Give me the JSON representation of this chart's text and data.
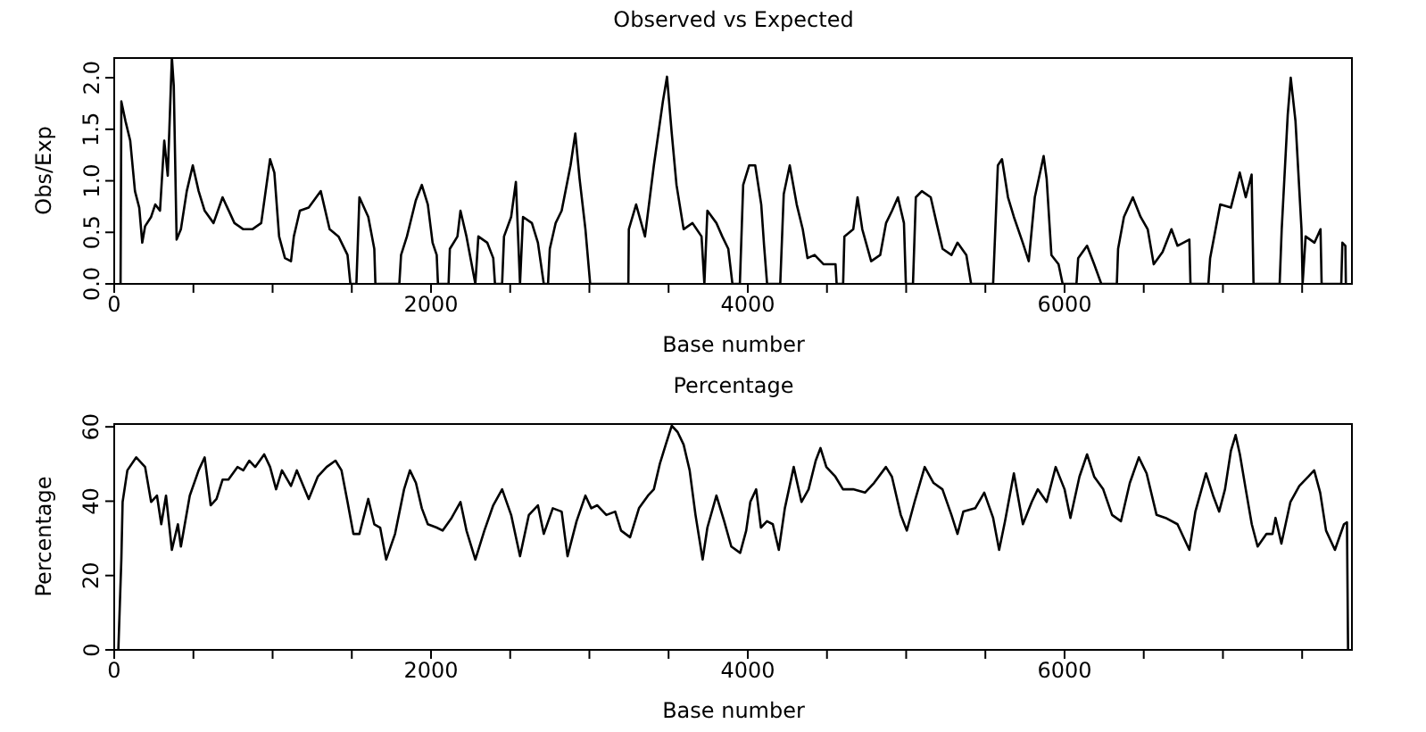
{
  "chart_data": [
    {
      "type": "line",
      "title": "Observed vs Expected",
      "xlabel": "Base number",
      "ylabel": "Obs/Exp",
      "xlim": [
        0,
        7820
      ],
      "ylim": [
        0,
        2.2
      ],
      "xticks": [
        0,
        {
          "value": 500,
          "label": null
        },
        {
          "value": 1000,
          "label": null
        },
        {
          "value": 1500,
          "label": null
        },
        2000,
        {
          "value": 2500,
          "label": null
        },
        {
          "value": 3000,
          "label": null
        },
        {
          "value": 3500,
          "label": null
        },
        4000,
        {
          "value": 4500,
          "label": null
        },
        {
          "value": 5000,
          "label": null
        },
        {
          "value": 5500,
          "label": null
        },
        6000,
        {
          "value": 6500,
          "label": null
        },
        {
          "value": 7000,
          "label": null
        },
        {
          "value": 7500,
          "label": null
        }
      ],
      "yticks": [
        {
          "value": 0,
          "label": "0.0"
        },
        0.5,
        {
          "value": 1,
          "label": "1.0"
        },
        1.5,
        {
          "value": 2,
          "label": "2.0"
        }
      ],
      "series": [
        {
          "color": "#000000",
          "x": [
            40,
            45,
            71,
            101,
            131,
            158,
            177,
            195,
            233,
            259,
            289,
            316,
            338,
            364,
            376,
            394,
            421,
            458,
            496,
            533,
            571,
            627,
            684,
            759,
            815,
            872,
            928,
            984,
            1011,
            1041,
            1078,
            1116,
            1134,
            1172,
            1228,
            1304,
            1360,
            1416,
            1473,
            1491,
            1529,
            1548,
            1604,
            1642,
            1649,
            1800,
            1811,
            1848,
            1904,
            1942,
            1980,
            2010,
            2036,
            2044,
            2111,
            2119,
            2167,
            2186,
            2224,
            2280,
            2299,
            2355,
            2393,
            2404,
            2449,
            2461,
            2506,
            2536,
            2562,
            2581,
            2637,
            2675,
            2712,
            2739,
            2750,
            2787,
            2825,
            2881,
            2911,
            2938,
            2975,
            3005,
            3246,
            3249,
            3295,
            3351,
            3407,
            3464,
            3490,
            3520,
            3550,
            3595,
            3651,
            3708,
            3726,
            3745,
            3802,
            3839,
            3877,
            3903,
            3950,
            3971,
            4009,
            4047,
            4085,
            4103,
            4122,
            4205,
            4227,
            4265,
            4309,
            4347,
            4377,
            4422,
            4479,
            4554,
            4561,
            4602,
            4610,
            4666,
            4693,
            4723,
            4779,
            4836,
            4873,
            4911,
            4948,
            4986,
            4998,
            5043,
            5061,
            5099,
            5155,
            5192,
            5230,
            5286,
            5324,
            5380,
            5410,
            5549,
            5579,
            5605,
            5643,
            5680,
            5736,
            5774,
            5812,
            5868,
            5887,
            5917,
            5962,
            5988,
            6075,
            6086,
            6142,
            6187,
            6232,
            6330,
            6338,
            6375,
            6431,
            6480,
            6525,
            6563,
            6619,
            6675,
            6713,
            6788,
            6795,
            6908,
            6919,
            6983,
            7050,
            7106,
            7144,
            7181,
            7193,
            7358,
            7371,
            7409,
            7428,
            7458,
            7496,
            7503,
            7522,
            7578,
            7616,
            7623,
            7747,
            7754,
            7773,
            7776
          ],
          "values": [
            0,
            1.77,
            1.58,
            1.39,
            0.9,
            0.74,
            0.4,
            0.56,
            0.65,
            0.77,
            0.71,
            1.39,
            1.05,
            2.2,
            1.92,
            0.43,
            0.53,
            0.9,
            1.15,
            0.9,
            0.71,
            0.59,
            0.84,
            0.59,
            0.53,
            0.53,
            0.59,
            1.21,
            1.08,
            0.46,
            0.25,
            0.22,
            0.46,
            0.71,
            0.74,
            0.9,
            0.53,
            0.46,
            0.28,
            0,
            0,
            0.84,
            0.65,
            0.34,
            0,
            0,
            0.28,
            0.46,
            0.81,
            0.96,
            0.77,
            0.4,
            0.28,
            0,
            0,
            0.34,
            0.46,
            0.71,
            0.46,
            0,
            0.46,
            0.4,
            0.25,
            0,
            0,
            0.46,
            0.65,
            0.99,
            0,
            0.65,
            0.59,
            0.4,
            0,
            0,
            0.34,
            0.59,
            0.71,
            1.15,
            1.46,
            1.02,
            0.53,
            0,
            0,
            0.53,
            0.77,
            0.46,
            1.15,
            1.77,
            2.01,
            1.46,
            0.96,
            0.53,
            0.59,
            0.46,
            0,
            0.71,
            0.59,
            0.46,
            0.34,
            0,
            0,
            0.96,
            1.15,
            1.15,
            0.77,
            0.37,
            0,
            0,
            0.87,
            1.15,
            0.77,
            0.53,
            0.25,
            0.28,
            0.19,
            0.19,
            0,
            0,
            0.46,
            0.53,
            0.84,
            0.53,
            0.22,
            0.28,
            0.59,
            0.71,
            0.84,
            0.59,
            0,
            0,
            0.84,
            0.9,
            0.84,
            0.59,
            0.34,
            0.28,
            0.4,
            0.28,
            0,
            0,
            1.15,
            1.21,
            0.84,
            0.65,
            0.4,
            0.22,
            0.84,
            1.24,
            1.02,
            0.28,
            0.19,
            0,
            0,
            0.25,
            0.37,
            0.19,
            0,
            0,
            0.34,
            0.65,
            0.84,
            0.65,
            0.53,
            0.19,
            0.31,
            0.53,
            0.37,
            0.43,
            0,
            0,
            0.25,
            0.77,
            0.74,
            1.08,
            0.84,
            1.06,
            0,
            0,
            0.53,
            1.64,
            2,
            1.58,
            0.53,
            0,
            0.46,
            0.4,
            0.53,
            0,
            0,
            0.4,
            0.37,
            0
          ]
        }
      ]
    },
    {
      "type": "line",
      "title": "Percentage",
      "xlabel": "Base number",
      "ylabel": "Percentage",
      "xlim": [
        0,
        7820
      ],
      "ylim": [
        0,
        61
      ],
      "xticks": [
        0,
        {
          "value": 500,
          "label": null
        },
        {
          "value": 1000,
          "label": null
        },
        {
          "value": 1500,
          "label": null
        },
        2000,
        {
          "value": 2500,
          "label": null
        },
        {
          "value": 3000,
          "label": null
        },
        {
          "value": 3500,
          "label": null
        },
        4000,
        {
          "value": 4500,
          "label": null
        },
        {
          "value": 5000,
          "label": null
        },
        {
          "value": 5500,
          "label": null
        },
        6000,
        {
          "value": 6500,
          "label": null
        },
        {
          "value": 7000,
          "label": null
        },
        {
          "value": 7500,
          "label": null
        }
      ],
      "yticks": [
        0,
        20,
        40,
        60
      ],
      "series": [
        {
          "color": "#000000",
          "x": [
            26,
            45,
            53,
            83,
            139,
            195,
            233,
            270,
            297,
            327,
            364,
            402,
            421,
            477,
            533,
            571,
            609,
            646,
            684,
            721,
            778,
            815,
            853,
            890,
            947,
            984,
            1022,
            1059,
            1116,
            1153,
            1228,
            1285,
            1341,
            1397,
            1435,
            1473,
            1510,
            1548,
            1604,
            1642,
            1679,
            1717,
            1773,
            1830,
            1867,
            1905,
            1942,
            1980,
            2036,
            2074,
            2130,
            2186,
            2224,
            2280,
            2337,
            2393,
            2449,
            2506,
            2562,
            2618,
            2675,
            2712,
            2769,
            2825,
            2862,
            2919,
            2975,
            3012,
            3050,
            3107,
            3163,
            3200,
            3257,
            3313,
            3370,
            3407,
            3445,
            3482,
            3520,
            3557,
            3595,
            3633,
            3670,
            3715,
            3745,
            3802,
            3851,
            3896,
            3952,
            3990,
            4016,
            4053,
            4083,
            4121,
            4158,
            4196,
            4234,
            4290,
            4339,
            4384,
            4429,
            4459,
            4496,
            4553,
            4601,
            4665,
            4740,
            4797,
            4872,
            4910,
            4966,
            5004,
            5053,
            5117,
            5173,
            5229,
            5286,
            5324,
            5361,
            5436,
            5493,
            5549,
            5587,
            5624,
            5680,
            5737,
            5793,
            5831,
            5887,
            5944,
            6000,
            6037,
            6094,
            6142,
            6187,
            6244,
            6300,
            6356,
            6412,
            6469,
            6518,
            6581,
            6638,
            6713,
            6788,
            6826,
            6893,
            6938,
            6976,
            7013,
            7050,
            7080,
            7107,
            7144,
            7182,
            7219,
            7275,
            7313,
            7332,
            7369,
            7426,
            7482,
            7539,
            7576,
            7614,
            7651,
            7707,
            7764,
            7783,
            7790
          ],
          "values": [
            0,
            24.3,
            39.8,
            48.3,
            51.8,
            49.2,
            39.8,
            41.5,
            33.8,
            41.5,
            26.9,
            33.8,
            27.8,
            41.5,
            48.3,
            51.8,
            38.9,
            40.6,
            45.8,
            45.8,
            49.2,
            48.3,
            50.9,
            49.2,
            52.6,
            49.2,
            43.2,
            48.3,
            44.1,
            48.3,
            40.6,
            46.6,
            49.2,
            50.9,
            48.3,
            39.8,
            31.2,
            31.2,
            40.6,
            33.8,
            32.9,
            24.3,
            31.2,
            43.2,
            48.3,
            44.9,
            38.1,
            33.8,
            32.9,
            32.1,
            35.5,
            39.8,
            32.1,
            24.3,
            32.1,
            38.9,
            43.2,
            36.3,
            25.2,
            36.3,
            38.9,
            31.2,
            38.1,
            37.2,
            25.2,
            34.6,
            41.5,
            38.1,
            38.9,
            36.3,
            37.2,
            32.1,
            30.3,
            38.1,
            41.5,
            43.2,
            50.1,
            55.2,
            60.3,
            58.6,
            55.2,
            48.3,
            36.3,
            24.3,
            32.9,
            41.5,
            34.6,
            27.8,
            26.1,
            32.1,
            39.8,
            43.2,
            32.9,
            34.6,
            33.8,
            26.9,
            38.1,
            49.2,
            39.8,
            43.2,
            50.9,
            54.3,
            49.2,
            46.6,
            43.2,
            43.2,
            42.3,
            44.9,
            49.2,
            46.6,
            36.3,
            32.1,
            39.8,
            49.2,
            44.9,
            43.2,
            36.3,
            31.2,
            37.2,
            38.1,
            42.3,
            35.5,
            26.9,
            34.6,
            47.5,
            33.8,
            39.8,
            43.2,
            39.8,
            49.2,
            43.2,
            35.5,
            46.6,
            52.6,
            46.6,
            43.2,
            36.3,
            34.6,
            44.9,
            51.8,
            47.5,
            36.3,
            35.5,
            33.8,
            26.9,
            37.2,
            47.5,
            41.5,
            37.2,
            43.2,
            53.5,
            57.8,
            52.6,
            43.2,
            33.8,
            27.8,
            31.2,
            31.2,
            35.5,
            28.6,
            39.8,
            44.1,
            46.6,
            48.3,
            42.3,
            32.1,
            26.9,
            33.8,
            34.3,
            0
          ]
        }
      ]
    }
  ]
}
